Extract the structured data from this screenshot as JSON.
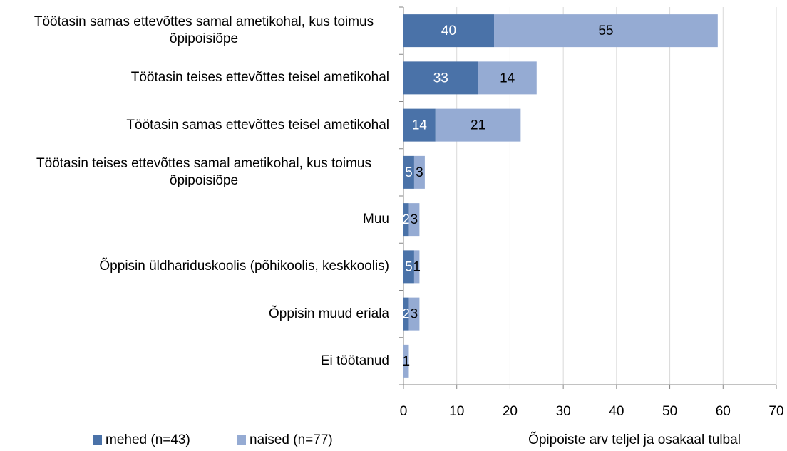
{
  "chart_data": {
    "type": "stacked-barh",
    "categories": [
      "Töötasin samas ettevõttes samal ametikohal, kus toimus õpipoisiõpe",
      "Töötasin teises ettevõttes teisel ametikohal",
      "Töötasin samas ettevõttes teisel ametikohal",
      "Töötasin teises ettevõttes samal ametikohal, kus toimus õpipoisiõpe",
      "Muu",
      "Õppisin üldhariduskoolis (põhikoolis, keskkoolis)",
      "Õppisin muud eriala",
      "Ei töötanud"
    ],
    "series": [
      {
        "name": "mehed (n=43)",
        "color": "#4a72a8",
        "label_color": "#ffffff",
        "values": [
          17,
          14,
          6,
          2,
          1,
          2,
          1,
          0
        ],
        "shares": [
          40,
          33,
          14,
          5,
          2,
          5,
          2,
          null
        ]
      },
      {
        "name": "naised (n=77)",
        "color": "#95abd3",
        "label_color": "#000000",
        "values": [
          42,
          11,
          16,
          2,
          2,
          1,
          2,
          1
        ],
        "shares": [
          55,
          14,
          21,
          3,
          3,
          1,
          3,
          1
        ]
      }
    ],
    "xlabel": "Õpipoiste arv teljel ja osakaal tulbal",
    "xlim": [
      0,
      70
    ],
    "xticks": [
      0,
      10,
      20,
      30,
      40,
      50,
      60,
      70
    ],
    "grid": true
  }
}
